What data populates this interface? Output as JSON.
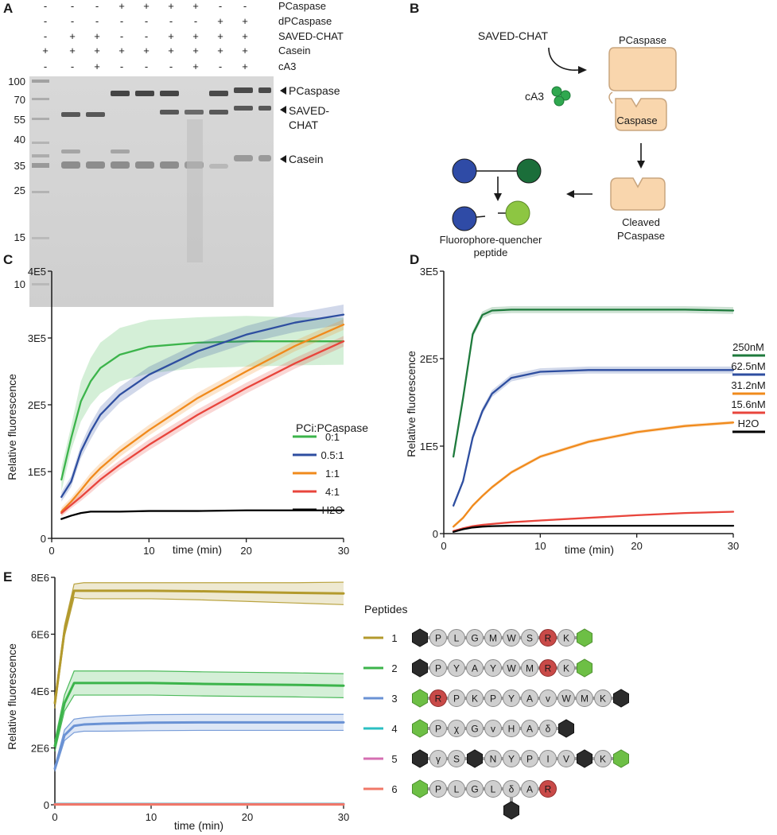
{
  "panel_labels": [
    "A",
    "B",
    "C",
    "D",
    "E"
  ],
  "panel_a": {
    "conditions": [
      {
        "label": "PCaspase",
        "marks": [
          "-",
          "-",
          "-",
          "+",
          "+",
          "+",
          "+",
          "-",
          "-"
        ]
      },
      {
        "label": "dPCaspase",
        "marks": [
          "-",
          "-",
          "-",
          "-",
          "-",
          "-",
          "-",
          "+",
          "+"
        ]
      },
      {
        "label": "SAVED-CHAT",
        "marks": [
          "-",
          "+",
          "+",
          "-",
          "-",
          "+",
          "+",
          "+",
          "+"
        ]
      },
      {
        "label": "Casein",
        "marks": [
          "+",
          "+",
          "+",
          "+",
          "+",
          "+",
          "+",
          "+",
          "+"
        ]
      },
      {
        "label": "cA3",
        "marks": [
          "-",
          "-",
          "+",
          "-",
          "-",
          "-",
          "+",
          "-",
          "+"
        ]
      }
    ],
    "ladder": [
      "100",
      "70",
      "55",
      "40",
      "35",
      "25",
      "15",
      "10"
    ],
    "band_labels": [
      "PCaspase",
      "SAVED-",
      "CHAT",
      "Casein"
    ]
  },
  "panel_b": {
    "saved_chat": "SAVED-CHAT",
    "ca3": "cA3",
    "pcaspase": "PCaspase",
    "caspase": "Caspase",
    "cleaved_line1": "Cleaved",
    "cleaved_line2": "PCaspase",
    "fq_line1": "Fluorophore-quencher",
    "fq_line2": "peptide"
  },
  "chart_data": [
    {
      "type": "line",
      "panel": "C",
      "xlabel": "time (min)",
      "ylabel": "Relative fluorescence",
      "xlim": [
        0,
        30
      ],
      "ylim": [
        0,
        400000
      ],
      "x_ticks": [
        "0",
        "10",
        "20",
        "30"
      ],
      "y_ticks": [
        "0",
        "1E5",
        "2E5",
        "3E5",
        "4E5"
      ],
      "legend_title": "PCi:PCaspase",
      "x": [
        1,
        2,
        3,
        4,
        5,
        7,
        10,
        15,
        20,
        25,
        30
      ],
      "series": [
        {
          "name": "0:1",
          "color": "#3cb44b",
          "values": [
            88000,
            150000,
            205000,
            235000,
            255000,
            275000,
            287000,
            293000,
            295000,
            295000,
            295000
          ],
          "band": [
            18000,
            18000,
            30000,
            35000,
            38000,
            40000,
            40000,
            38000,
            38000,
            36000,
            35000
          ]
        },
        {
          "name": "0.5:1",
          "color": "#2e4ea0",
          "values": [
            62000,
            85000,
            130000,
            160000,
            185000,
            215000,
            245000,
            280000,
            305000,
            323000,
            335000
          ],
          "band": [
            7000,
            8000,
            10000,
            12000,
            12000,
            12000,
            12000,
            12000,
            13000,
            14000,
            15000
          ]
        },
        {
          "name": "1:1",
          "color": "#f08a1c",
          "values": [
            40000,
            55000,
            72000,
            90000,
            105000,
            130000,
            162000,
            210000,
            250000,
            288000,
            320000
          ],
          "band": [
            6000,
            6000,
            7000,
            8000,
            8000,
            8000,
            8000,
            8000,
            8000,
            8000,
            8000
          ]
        },
        {
          "name": "4:1",
          "color": "#e8453c",
          "values": [
            38000,
            50000,
            62000,
            75000,
            88000,
            110000,
            140000,
            185000,
            225000,
            262000,
            295000
          ],
          "band": [
            5000,
            5000,
            6000,
            7000,
            7000,
            7000,
            8000,
            8000,
            8000,
            8000,
            8000
          ]
        },
        {
          "name": "H2O",
          "color": "#000000",
          "values": [
            29000,
            34000,
            38000,
            40000,
            40000,
            40000,
            41000,
            41000,
            42000,
            42000,
            42000
          ],
          "band": [
            0,
            0,
            0,
            0,
            0,
            0,
            0,
            0,
            0,
            0,
            0
          ]
        }
      ]
    },
    {
      "type": "line",
      "panel": "D",
      "xlabel": "time (min)",
      "ylabel": "Relative fluorescence",
      "xlim": [
        0,
        30
      ],
      "ylim": [
        0,
        300000
      ],
      "x_ticks": [
        "0",
        "10",
        "20",
        "30"
      ],
      "y_ticks": [
        "0",
        "1E5",
        "2E5",
        "3E5"
      ],
      "x": [
        1,
        2,
        3,
        4,
        5,
        7,
        10,
        15,
        20,
        25,
        30
      ],
      "series": [
        {
          "name": "250nM",
          "color": "#1e7a3c",
          "values": [
            88000,
            155000,
            228000,
            250000,
            255000,
            256000,
            256000,
            256000,
            256000,
            256000,
            255000
          ],
          "band": [
            3000,
            3000,
            4000,
            4000,
            4000,
            4000,
            4000,
            4000,
            4000,
            4000,
            4000
          ]
        },
        {
          "name": "62.5nM",
          "color": "#2e4ea0",
          "values": [
            32000,
            60000,
            110000,
            140000,
            160000,
            178000,
            185000,
            187000,
            187000,
            187000,
            187000
          ],
          "band": [
            3000,
            3000,
            4000,
            4000,
            4000,
            4000,
            4000,
            4000,
            4000,
            4000,
            4000
          ]
        },
        {
          "name": "31.2nM",
          "color": "#f08a1c",
          "values": [
            8000,
            18000,
            32000,
            43000,
            53000,
            70000,
            88000,
            105000,
            116000,
            123000,
            127000
          ],
          "band": [
            2000,
            2000,
            2000,
            2000,
            2000,
            2000,
            2000,
            2000,
            2000,
            2000,
            2000
          ]
        },
        {
          "name": "15.6nM",
          "color": "#e8453c",
          "values": [
            3000,
            6000,
            8500,
            10000,
            11000,
            13000,
            15000,
            18000,
            21000,
            23500,
            25000
          ],
          "band": [
            1000,
            1000,
            1000,
            1000,
            1000,
            1000,
            1000,
            1000,
            1000,
            1000,
            1000
          ]
        },
        {
          "name": "H2O",
          "color": "#000000",
          "values": [
            2000,
            5000,
            7000,
            8000,
            8500,
            9000,
            9000,
            9000,
            9000,
            9000,
            9000
          ],
          "band": [
            0,
            0,
            0,
            0,
            0,
            0,
            0,
            0,
            0,
            0,
            0
          ]
        }
      ]
    },
    {
      "type": "line",
      "panel": "E",
      "xlabel": "time (min)",
      "ylabel": "Relative fluorescence",
      "xlim": [
        0,
        30
      ],
      "ylim": [
        0,
        8500000
      ],
      "x_ticks": [
        "0",
        "10",
        "20",
        "30"
      ],
      "y_ticks": [
        "0",
        "2E6",
        "4E6",
        "6E6",
        "8E6"
      ],
      "legend_title": "Peptides",
      "x": [
        0,
        1,
        2,
        3,
        5,
        10,
        15,
        20,
        25,
        30
      ],
      "series": [
        {
          "name": "1",
          "color": "#b39a2d",
          "values": [
            3800000,
            6500000,
            8000000,
            8000000,
            8000000,
            8000000,
            7980000,
            7950000,
            7920000,
            7900000
          ],
          "band": [
            200000,
            200000,
            250000,
            300000,
            300000,
            300000,
            320000,
            350000,
            380000,
            420000
          ]
        },
        {
          "name": "2",
          "color": "#3cb44b",
          "values": [
            2200000,
            3800000,
            4550000,
            4550000,
            4550000,
            4550000,
            4520000,
            4500000,
            4480000,
            4450000
          ],
          "band": [
            200000,
            300000,
            450000,
            450000,
            450000,
            450000,
            450000,
            450000,
            450000,
            450000
          ]
        },
        {
          "name": "3",
          "color": "#6a92d4",
          "values": [
            1350000,
            2600000,
            2950000,
            3000000,
            3030000,
            3070000,
            3080000,
            3080000,
            3080000,
            3080000
          ],
          "band": [
            100000,
            200000,
            250000,
            250000,
            280000,
            300000,
            300000,
            300000,
            300000,
            300000
          ]
        },
        {
          "name": "4",
          "color": "#2bbfc2",
          "values": [
            30000,
            30000,
            30000,
            30000,
            30000,
            30000,
            30000,
            30000,
            30000,
            30000
          ],
          "band": [
            0,
            0,
            0,
            0,
            0,
            0,
            0,
            0,
            0,
            0
          ]
        },
        {
          "name": "5",
          "color": "#d56fb2",
          "values": [
            20000,
            20000,
            20000,
            20000,
            20000,
            20000,
            20000,
            20000,
            20000,
            20000
          ],
          "band": [
            0,
            0,
            0,
            0,
            0,
            0,
            0,
            0,
            0,
            0
          ]
        },
        {
          "name": "6",
          "color": "#f07868",
          "values": [
            10000,
            10000,
            10000,
            10000,
            10000,
            10000,
            10000,
            10000,
            10000,
            10000
          ],
          "band": [
            0,
            0,
            0,
            0,
            0,
            0,
            0,
            0,
            0,
            0
          ]
        }
      ],
      "peptides": [
        {
          "label": "1",
          "tokens": [
            "Q",
            "P",
            "L",
            "G",
            "M",
            "W",
            "S",
            "R",
            "K",
            "F"
          ]
        },
        {
          "label": "2",
          "tokens": [
            "Q",
            "P",
            "Y",
            "A",
            "Y",
            "W",
            "M",
            "R",
            "K",
            "F"
          ]
        },
        {
          "label": "3",
          "tokens": [
            "F",
            "R",
            "P",
            "K",
            "P",
            "Y",
            "A",
            "v",
            "W",
            "M",
            "K",
            "Q"
          ]
        },
        {
          "label": "4",
          "tokens": [
            "F",
            "P",
            "χ",
            "G",
            "v",
            "H",
            "A",
            "δ",
            "Q"
          ]
        },
        {
          "label": "5",
          "tokens": [
            "Q",
            "γ",
            "S",
            "Q",
            "N",
            "Y",
            "P",
            "I",
            "V",
            "Q",
            "K",
            "F"
          ]
        },
        {
          "label": "6",
          "tokens": [
            "F",
            "P",
            "L",
            "G",
            "L",
            "δ",
            "A",
            "R"
          ],
          "branch": "Q"
        }
      ]
    }
  ]
}
